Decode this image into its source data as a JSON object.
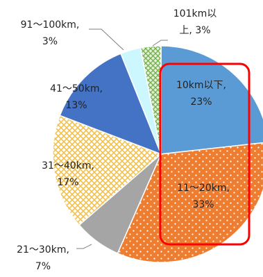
{
  "chart_data": {
    "type": "pie",
    "start": "top, clockwise",
    "slices": [
      {
        "label": "10km以下",
        "value": 23,
        "value_label": "23%",
        "color": "#5b9bd5",
        "pattern": "none"
      },
      {
        "label": "11〜20km",
        "value": 33,
        "value_label": "33%",
        "color": "#ed7d31",
        "pattern": "dots"
      },
      {
        "label": "21〜30km",
        "value": 7,
        "value_label": "7%",
        "color": "#a5a5a5",
        "pattern": "none"
      },
      {
        "label": "31〜40km",
        "value": 17,
        "value_label": "17%",
        "color": "#ffd966",
        "pattern": "crosshatch"
      },
      {
        "label": "41〜50km",
        "value": 13,
        "value_label": "13%",
        "color": "#4472c4",
        "pattern": "none"
      },
      {
        "label": "91〜100km",
        "value": 3,
        "value_label": "3%",
        "color": "#ccf7ff",
        "pattern": "none"
      },
      {
        "label": "101km以上",
        "value": 3,
        "value_label": "3%",
        "color": "#a9d18e",
        "pattern": "lattice"
      }
    ],
    "data_labels": [
      {
        "lines": [
          "10km以下,",
          "23%"
        ]
      },
      {
        "lines": [
          "11〜20km,",
          "33%"
        ]
      },
      {
        "lines": [
          "21〜30km,",
          "7%"
        ]
      },
      {
        "lines": [
          "31〜40km,",
          "17%"
        ]
      },
      {
        "lines": [
          "41〜50km,",
          "13%"
        ]
      },
      {
        "lines": [
          "91〜100km,",
          "3%"
        ]
      },
      {
        "lines": [
          "101km以",
          "上, 3%"
        ]
      }
    ],
    "highlight": {
      "color": "#ff0000",
      "covers": [
        "10km以下",
        "11〜20km"
      ]
    }
  }
}
